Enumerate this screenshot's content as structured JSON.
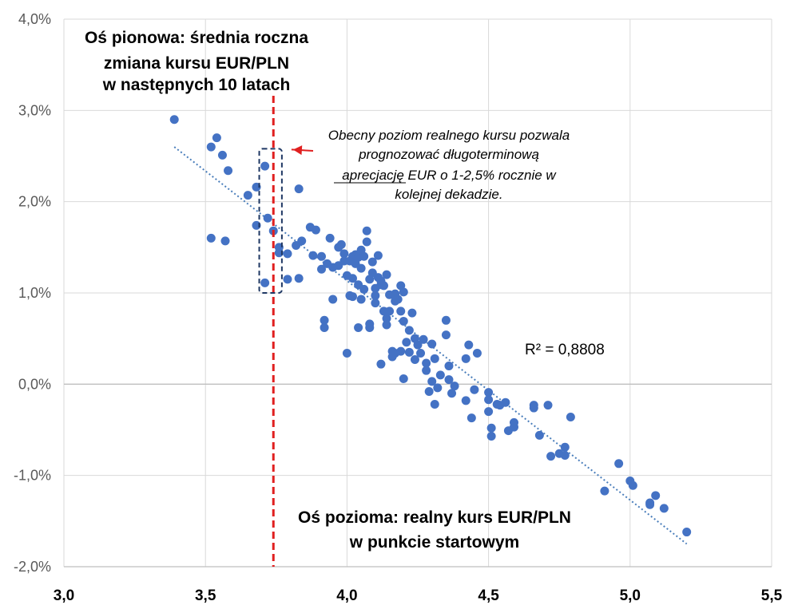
{
  "chart_data": {
    "type": "scatter",
    "title_lines": [
      "Oś pionowa: średnia roczna",
      "zmiana kursu EUR/PLN",
      "w następnych 10 latach"
    ],
    "xlabel_lines": [
      "Oś pozioma: realny kurs EUR/PLN",
      "w punkcie startowym"
    ],
    "x_ticks": [
      "3,0",
      "3,5",
      "4,0",
      "4,5",
      "5,0",
      "5,5"
    ],
    "y_ticks": [
      "4,0%",
      "3,0%",
      "2,0%",
      "1,0%",
      "0,0%",
      "-1,0%",
      "-2,0%"
    ],
    "xlim": [
      3.0,
      5.5
    ],
    "ylim": [
      -2.0,
      4.0
    ],
    "grid": true,
    "point_color": "#4472C4",
    "current_rate_line": {
      "x": 3.74,
      "color": "#E02020",
      "style": "dashed"
    },
    "highlight_box": {
      "x_range": [
        3.69,
        3.77
      ],
      "y_range": [
        1.0,
        2.58
      ],
      "color": "#1F3864"
    },
    "annotation_lines": [
      "Obecny poziom realnego kursu pozwala",
      "prognozować długoterminową",
      "aprecjację EUR o 1-2,5% rocznie w",
      "kolejnej dekadzie."
    ],
    "annotation_underlined": "aprecjację",
    "r2_label": "R² = 0,8808",
    "trendline": {
      "x": [
        3.39,
        5.2
      ],
      "y": [
        2.6,
        -1.75
      ],
      "style": "dotted"
    },
    "points": [
      [
        3.39,
        2.9
      ],
      [
        3.52,
        2.6
      ],
      [
        3.54,
        2.7
      ],
      [
        3.56,
        2.51
      ],
      [
        3.58,
        2.34
      ],
      [
        3.52,
        1.6
      ],
      [
        3.57,
        1.57
      ],
      [
        3.65,
        2.07
      ],
      [
        3.68,
        2.16
      ],
      [
        3.68,
        1.74
      ],
      [
        3.71,
        2.39
      ],
      [
        3.71,
        1.11
      ],
      [
        3.72,
        1.82
      ],
      [
        3.74,
        1.68
      ],
      [
        3.76,
        1.5
      ],
      [
        3.76,
        1.44
      ],
      [
        3.79,
        1.43
      ],
      [
        3.79,
        1.15
      ],
      [
        3.82,
        1.52
      ],
      [
        3.83,
        2.14
      ],
      [
        3.83,
        1.16
      ],
      [
        3.84,
        1.57
      ],
      [
        3.87,
        1.72
      ],
      [
        3.88,
        1.41
      ],
      [
        3.89,
        1.69
      ],
      [
        3.91,
        1.4
      ],
      [
        3.91,
        1.26
      ],
      [
        3.92,
        0.7
      ],
      [
        3.92,
        0.62
      ],
      [
        3.93,
        1.32
      ],
      [
        3.94,
        1.6
      ],
      [
        3.95,
        1.28
      ],
      [
        3.95,
        0.93
      ],
      [
        3.97,
        1.5
      ],
      [
        3.97,
        1.3
      ],
      [
        3.98,
        1.53
      ],
      [
        3.99,
        1.43
      ],
      [
        3.99,
        1.35
      ],
      [
        4.0,
        1.19
      ],
      [
        4.0,
        0.34
      ],
      [
        4.01,
        1.35
      ],
      [
        4.01,
        0.97
      ],
      [
        4.02,
        1.4
      ],
      [
        4.02,
        1.16
      ],
      [
        4.02,
        0.96
      ],
      [
        4.03,
        1.42
      ],
      [
        4.03,
        1.32
      ],
      [
        4.04,
        1.39
      ],
      [
        4.04,
        1.09
      ],
      [
        4.04,
        0.62
      ],
      [
        4.05,
        1.27
      ],
      [
        4.05,
        1.47
      ],
      [
        4.05,
        0.93
      ],
      [
        4.06,
        1.4
      ],
      [
        4.06,
        1.04
      ],
      [
        4.07,
        1.56
      ],
      [
        4.07,
        1.68
      ],
      [
        4.08,
        1.15
      ],
      [
        4.08,
        0.66
      ],
      [
        4.08,
        0.62
      ],
      [
        4.09,
        1.34
      ],
      [
        4.09,
        1.22
      ],
      [
        4.1,
        1.05
      ],
      [
        4.1,
        0.97
      ],
      [
        4.1,
        0.89
      ],
      [
        4.11,
        1.41
      ],
      [
        4.11,
        1.17
      ],
      [
        4.12,
        1.13
      ],
      [
        4.12,
        1.09
      ],
      [
        4.12,
        0.22
      ],
      [
        4.13,
        1.08
      ],
      [
        4.13,
        0.8
      ],
      [
        4.14,
        1.2
      ],
      [
        4.14,
        0.72
      ],
      [
        4.14,
        0.65
      ],
      [
        4.15,
        0.98
      ],
      [
        4.15,
        0.8
      ],
      [
        4.16,
        0.36
      ],
      [
        4.16,
        0.3
      ],
      [
        4.17,
        0.99
      ],
      [
        4.17,
        0.91
      ],
      [
        4.17,
        0.34
      ],
      [
        4.18,
        0.93
      ],
      [
        4.19,
        1.08
      ],
      [
        4.19,
        0.8
      ],
      [
        4.19,
        0.36
      ],
      [
        4.2,
        1.01
      ],
      [
        4.2,
        0.69
      ],
      [
        4.2,
        0.06
      ],
      [
        4.21,
        0.46
      ],
      [
        4.22,
        0.59
      ],
      [
        4.22,
        0.35
      ],
      [
        4.23,
        0.78
      ],
      [
        4.24,
        0.5
      ],
      [
        4.24,
        0.27
      ],
      [
        4.25,
        0.43
      ],
      [
        4.26,
        0.34
      ],
      [
        4.27,
        0.49
      ],
      [
        4.28,
        0.23
      ],
      [
        4.28,
        0.15
      ],
      [
        4.29,
        -0.08
      ],
      [
        4.3,
        0.44
      ],
      [
        4.3,
        0.03
      ],
      [
        4.31,
        -0.22
      ],
      [
        4.31,
        0.28
      ],
      [
        4.32,
        -0.04
      ],
      [
        4.33,
        0.1
      ],
      [
        4.35,
        0.7
      ],
      [
        4.35,
        0.54
      ],
      [
        4.36,
        0.2
      ],
      [
        4.36,
        0.05
      ],
      [
        4.37,
        -0.1
      ],
      [
        4.38,
        -0.02
      ],
      [
        4.42,
        0.28
      ],
      [
        4.42,
        -0.18
      ],
      [
        4.43,
        0.43
      ],
      [
        4.44,
        -0.37
      ],
      [
        4.45,
        -0.06
      ],
      [
        4.46,
        0.34
      ],
      [
        4.5,
        -0.09
      ],
      [
        4.5,
        -0.17
      ],
      [
        4.5,
        -0.3
      ],
      [
        4.51,
        -0.48
      ],
      [
        4.51,
        -0.57
      ],
      [
        4.53,
        -0.22
      ],
      [
        4.54,
        -0.23
      ],
      [
        4.56,
        -0.2
      ],
      [
        4.57,
        -0.51
      ],
      [
        4.59,
        -0.42
      ],
      [
        4.59,
        -0.47
      ],
      [
        4.66,
        -0.23
      ],
      [
        4.66,
        -0.26
      ],
      [
        4.68,
        -0.56
      ],
      [
        4.71,
        -0.23
      ],
      [
        4.72,
        -0.79
      ],
      [
        4.75,
        -0.76
      ],
      [
        4.77,
        -0.78
      ],
      [
        4.77,
        -0.69
      ],
      [
        4.79,
        -0.36
      ],
      [
        4.91,
        -1.17
      ],
      [
        4.96,
        -0.87
      ],
      [
        5.0,
        -1.06
      ],
      [
        5.01,
        -1.11
      ],
      [
        5.07,
        -1.32
      ],
      [
        5.07,
        -1.3
      ],
      [
        5.09,
        -1.22
      ],
      [
        5.12,
        -1.36
      ],
      [
        5.2,
        -1.62
      ]
    ]
  }
}
